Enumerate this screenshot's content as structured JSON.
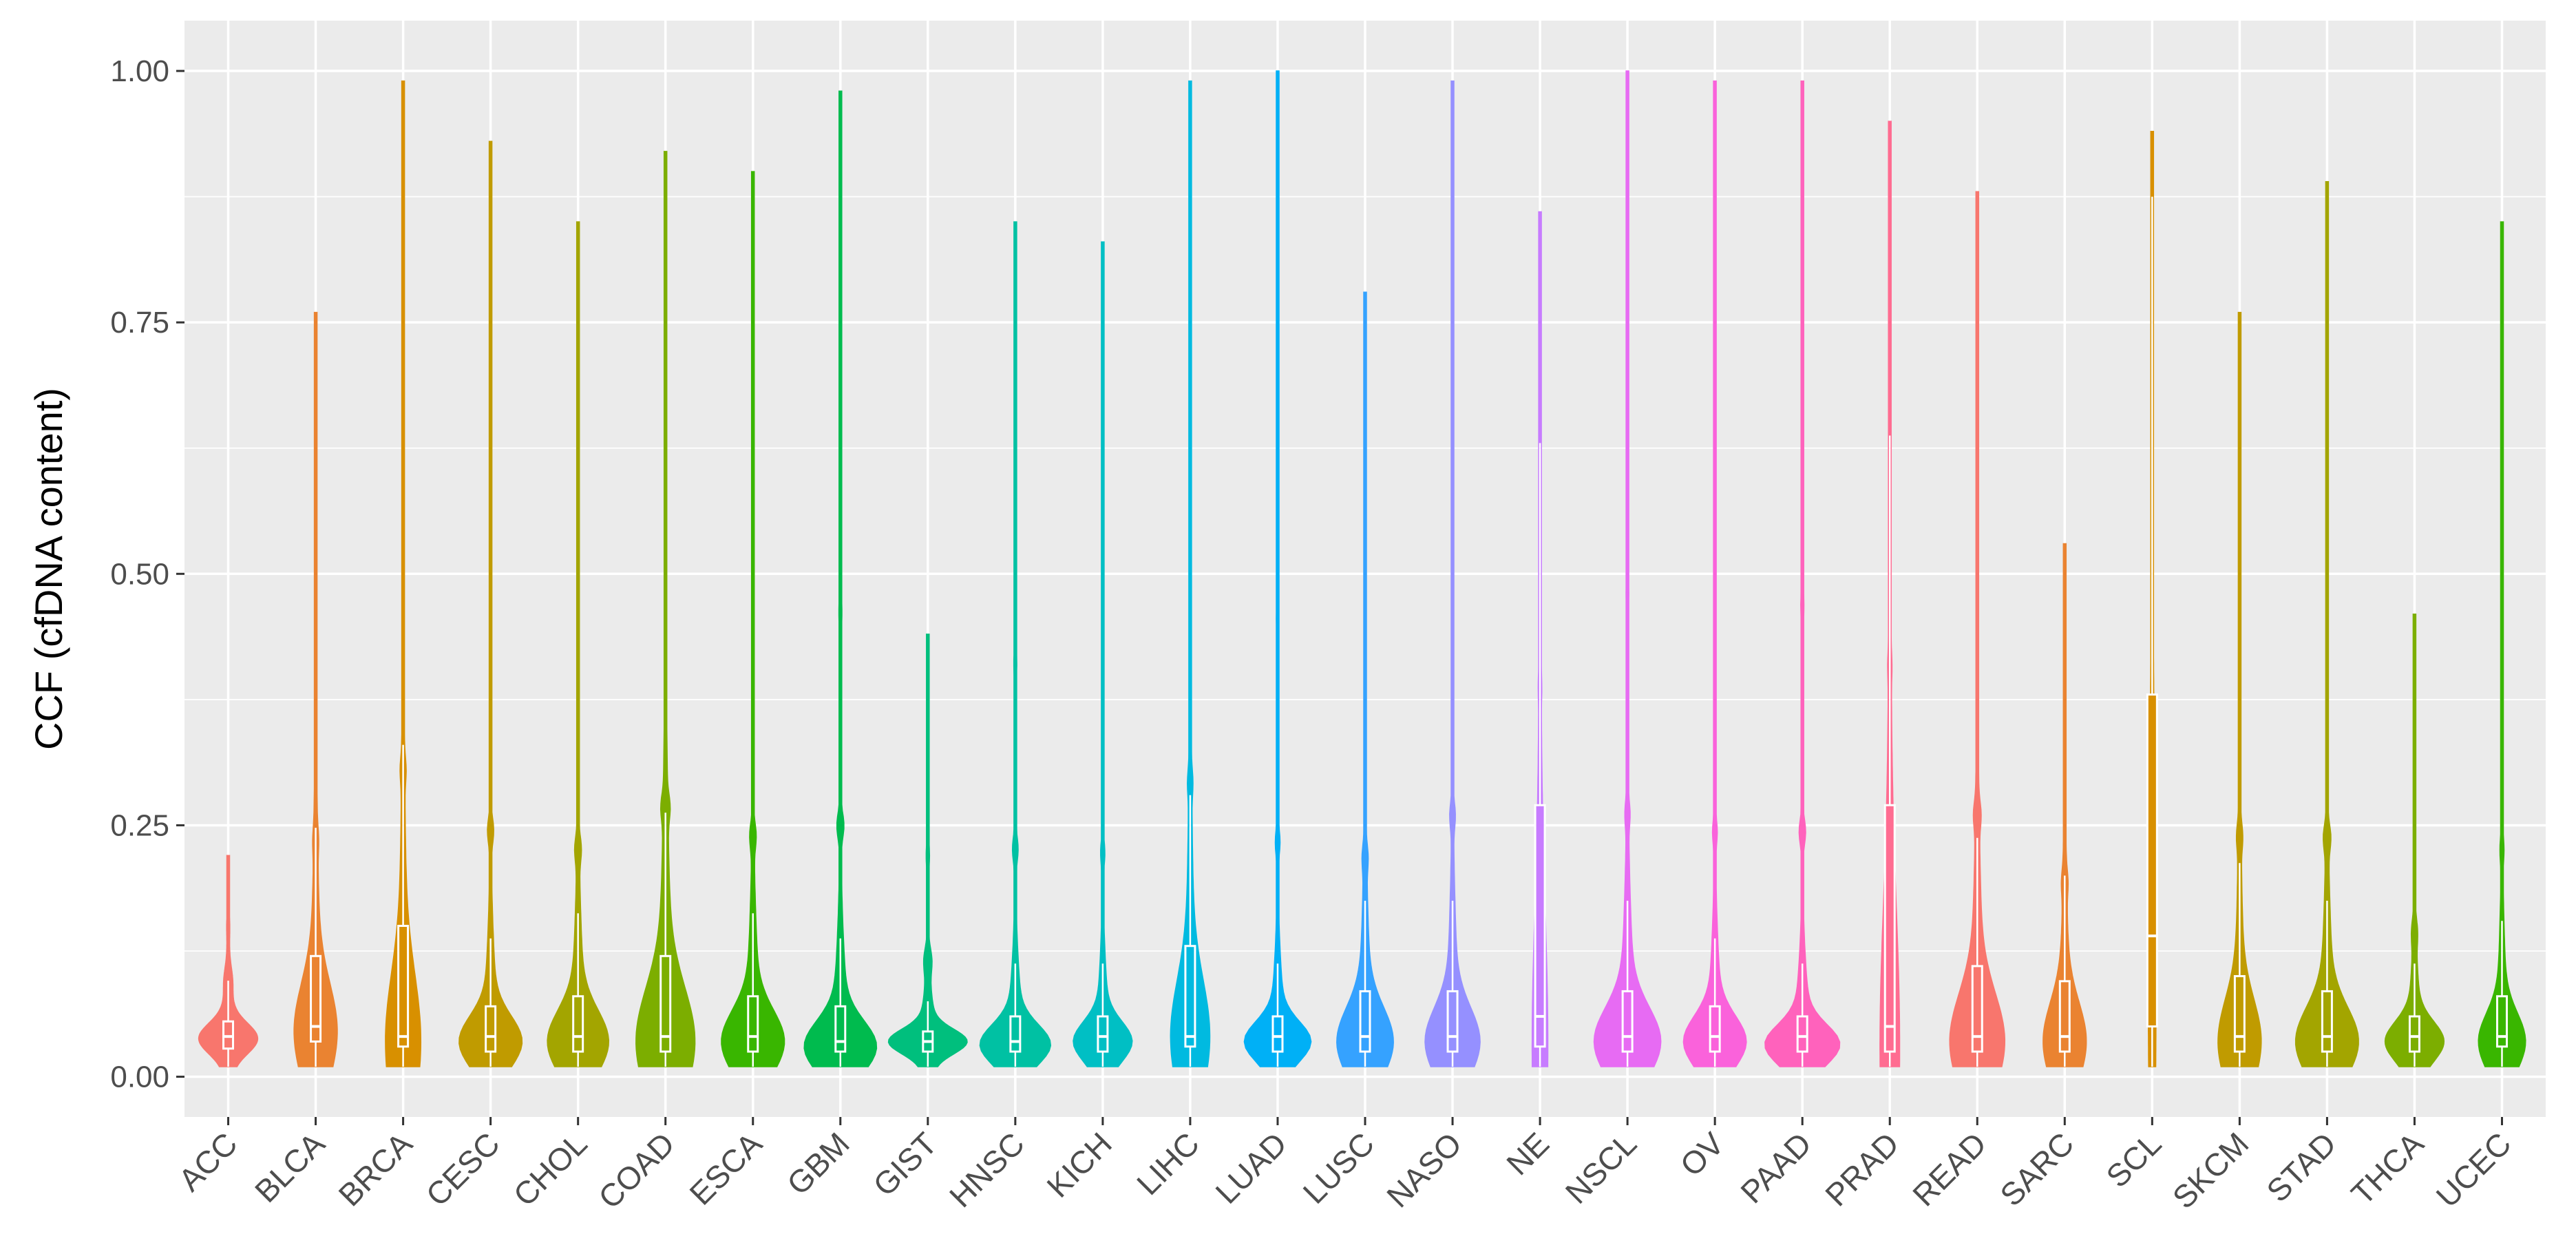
{
  "chart_data": {
    "type": "violin",
    "title": "",
    "xlabel": "",
    "ylabel": "CCF (cfDNA content)",
    "ylim": [
      -0.04,
      1.05
    ],
    "yticks": [
      0.0,
      0.25,
      0.5,
      0.75,
      1.0
    ],
    "ytick_labels": [
      "0.00",
      "0.25",
      "0.50",
      "0.75",
      "1.00"
    ],
    "grid": true,
    "legend": "none",
    "categories": [
      "ACC",
      "BLCA",
      "BRCA",
      "CESC",
      "CHOL",
      "COAD",
      "ESCA",
      "GBM",
      "GIST",
      "HNSC",
      "KICH",
      "LIHC",
      "LUAD",
      "LUSC",
      "NASO",
      "NE",
      "NSCL",
      "OV",
      "PAAD",
      "PRAD",
      "READ",
      "SARC",
      "SCL",
      "SKCM",
      "STAD",
      "THCA",
      "UCEC"
    ],
    "colors": [
      "#F8766D",
      "#EA8331",
      "#D89000",
      "#C09B00",
      "#A3A500",
      "#7CAE00",
      "#39B600",
      "#00BB4E",
      "#00BF7D",
      "#00C1A3",
      "#00BFC4",
      "#00BAE0",
      "#00B0F6",
      "#35A2FF",
      "#9590FF",
      "#C77CFF",
      "#E76BF3",
      "#FA62DB",
      "#FF62BC",
      "#FF6C91",
      "#F8766D",
      "#EA8331",
      "#D89000",
      "#C09B00",
      "#A3A500",
      "#7CAE00",
      "#39B600"
    ],
    "series": [
      {
        "name": "ACC",
        "min": 0.01,
        "max": 0.22,
        "q1": 0.028,
        "median": 0.04,
        "q3": 0.055,
        "peak": 0.038,
        "width": 0.75
      },
      {
        "name": "BLCA",
        "min": 0.01,
        "max": 0.76,
        "q1": 0.035,
        "median": 0.05,
        "q3": 0.12,
        "peak": 0.045,
        "width": 0.55
      },
      {
        "name": "BRCA",
        "min": 0.01,
        "max": 0.99,
        "q1": 0.03,
        "median": 0.04,
        "q3": 0.15,
        "peak": 0.035,
        "width": 0.45
      },
      {
        "name": "CESC",
        "min": 0.01,
        "max": 0.93,
        "q1": 0.025,
        "median": 0.04,
        "q3": 0.07,
        "peak": 0.035,
        "width": 0.8
      },
      {
        "name": "CHOL",
        "min": 0.01,
        "max": 0.85,
        "q1": 0.025,
        "median": 0.04,
        "q3": 0.08,
        "peak": 0.035,
        "width": 0.78
      },
      {
        "name": "COAD",
        "min": 0.01,
        "max": 0.92,
        "q1": 0.025,
        "median": 0.04,
        "q3": 0.12,
        "peak": 0.035,
        "width": 0.75
      },
      {
        "name": "ESCA",
        "min": 0.01,
        "max": 0.9,
        "q1": 0.025,
        "median": 0.04,
        "q3": 0.08,
        "peak": 0.035,
        "width": 0.8
      },
      {
        "name": "GBM",
        "min": 0.01,
        "max": 0.98,
        "q1": 0.025,
        "median": 0.035,
        "q3": 0.07,
        "peak": 0.03,
        "width": 0.92
      },
      {
        "name": "GIST",
        "min": 0.01,
        "max": 0.44,
        "q1": 0.025,
        "median": 0.035,
        "q3": 0.045,
        "peak": 0.035,
        "width": 1.0
      },
      {
        "name": "HNSC",
        "min": 0.01,
        "max": 0.85,
        "q1": 0.025,
        "median": 0.035,
        "q3": 0.06,
        "peak": 0.032,
        "width": 0.9
      },
      {
        "name": "KICH",
        "min": 0.01,
        "max": 0.83,
        "q1": 0.025,
        "median": 0.04,
        "q3": 0.06,
        "peak": 0.035,
        "width": 0.75
      },
      {
        "name": "LIHC",
        "min": 0.01,
        "max": 0.99,
        "q1": 0.03,
        "median": 0.04,
        "q3": 0.13,
        "peak": 0.04,
        "width": 0.5
      },
      {
        "name": "LUAD",
        "min": 0.01,
        "max": 1.0,
        "q1": 0.025,
        "median": 0.04,
        "q3": 0.06,
        "peak": 0.035,
        "width": 0.85
      },
      {
        "name": "LUSC",
        "min": 0.01,
        "max": 0.78,
        "q1": 0.025,
        "median": 0.04,
        "q3": 0.085,
        "peak": 0.035,
        "width": 0.72
      },
      {
        "name": "NASO",
        "min": 0.01,
        "max": 0.99,
        "q1": 0.025,
        "median": 0.04,
        "q3": 0.085,
        "peak": 0.035,
        "width": 0.7
      },
      {
        "name": "NE",
        "min": 0.01,
        "max": 0.86,
        "q1": 0.03,
        "median": 0.06,
        "q3": 0.27,
        "peak": 0.03,
        "width": 0.2
      },
      {
        "name": "NSCL",
        "min": 0.01,
        "max": 1.0,
        "q1": 0.025,
        "median": 0.04,
        "q3": 0.085,
        "peak": 0.035,
        "width": 0.85
      },
      {
        "name": "OV",
        "min": 0.01,
        "max": 0.99,
        "q1": 0.025,
        "median": 0.04,
        "q3": 0.07,
        "peak": 0.035,
        "width": 0.8
      },
      {
        "name": "PAAD",
        "min": 0.01,
        "max": 0.99,
        "q1": 0.025,
        "median": 0.04,
        "q3": 0.06,
        "peak": 0.032,
        "width": 0.95
      },
      {
        "name": "PRAD",
        "min": 0.01,
        "max": 0.95,
        "q1": 0.025,
        "median": 0.05,
        "q3": 0.27,
        "peak": 0.03,
        "width": 0.25
      },
      {
        "name": "READ",
        "min": 0.01,
        "max": 0.88,
        "q1": 0.025,
        "median": 0.04,
        "q3": 0.11,
        "peak": 0.035,
        "width": 0.7
      },
      {
        "name": "SARC",
        "min": 0.01,
        "max": 0.53,
        "q1": 0.025,
        "median": 0.04,
        "q3": 0.095,
        "peak": 0.035,
        "width": 0.55
      },
      {
        "name": "SCL",
        "min": 0.01,
        "max": 0.94,
        "q1": 0.05,
        "median": 0.14,
        "q3": 0.38,
        "peak": 0.1,
        "width": 0.1
      },
      {
        "name": "SKCM",
        "min": 0.01,
        "max": 0.76,
        "q1": 0.025,
        "median": 0.04,
        "q3": 0.1,
        "peak": 0.035,
        "width": 0.55
      },
      {
        "name": "STAD",
        "min": 0.01,
        "max": 0.89,
        "q1": 0.025,
        "median": 0.04,
        "q3": 0.085,
        "peak": 0.035,
        "width": 0.8
      },
      {
        "name": "THCA",
        "min": 0.01,
        "max": 0.46,
        "q1": 0.025,
        "median": 0.04,
        "q3": 0.06,
        "peak": 0.035,
        "width": 0.75
      },
      {
        "name": "UCEC",
        "min": 0.01,
        "max": 0.85,
        "q1": 0.03,
        "median": 0.04,
        "q3": 0.08,
        "peak": 0.035,
        "width": 0.6
      }
    ]
  }
}
